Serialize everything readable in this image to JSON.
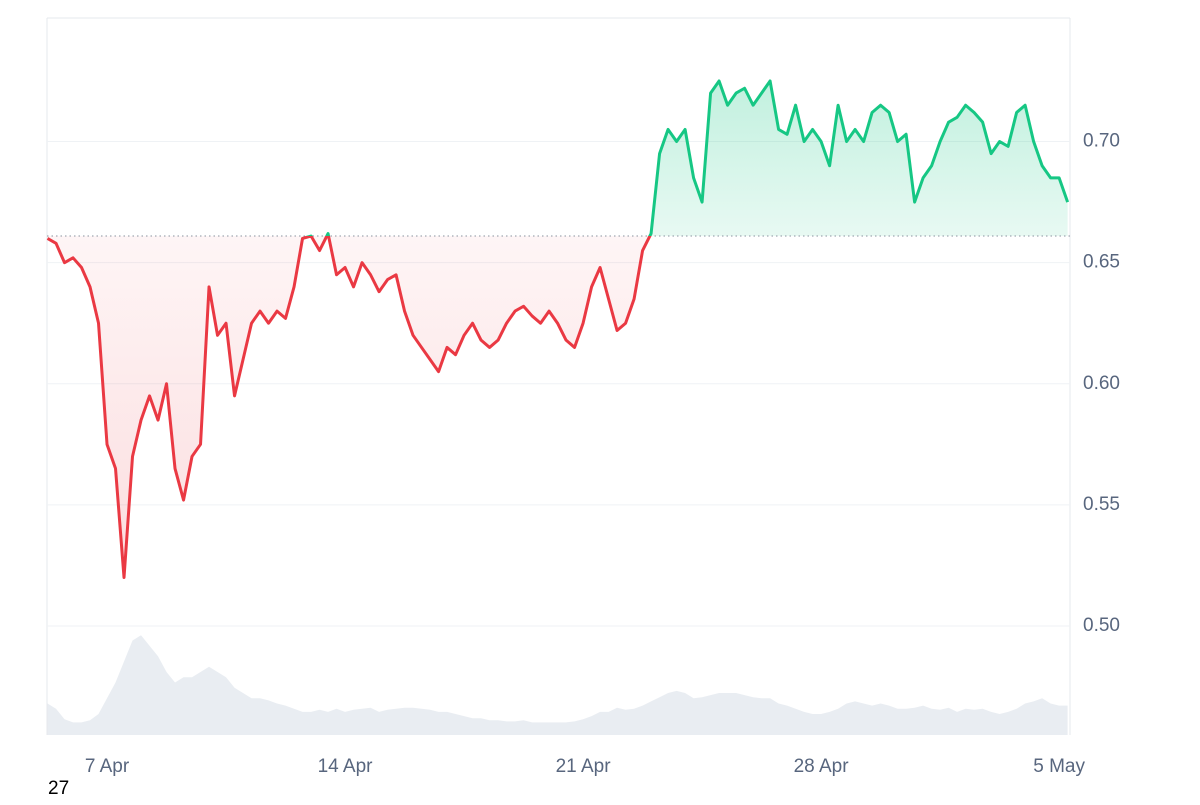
{
  "chart_data": {
    "type": "line",
    "x": [
      5.25,
      5.5,
      5.75,
      6,
      6.25,
      6.5,
      6.75,
      7,
      7.25,
      7.5,
      7.75,
      8,
      8.25,
      8.5,
      8.75,
      9,
      9.25,
      9.5,
      9.75,
      10,
      10.25,
      10.5,
      10.75,
      11,
      11.25,
      11.5,
      11.75,
      12,
      12.25,
      12.5,
      12.75,
      13,
      13.25,
      13.5,
      13.75,
      14,
      14.25,
      14.5,
      14.75,
      15,
      15.25,
      15.5,
      15.75,
      16,
      16.25,
      16.5,
      16.75,
      17,
      17.25,
      17.5,
      17.75,
      18,
      18.25,
      18.5,
      18.75,
      19,
      19.25,
      19.5,
      19.75,
      20,
      20.25,
      20.5,
      20.75,
      21,
      21.25,
      21.5,
      21.75,
      22,
      22.25,
      22.5,
      22.75,
      23,
      23.25,
      23.5,
      23.75,
      24,
      24.25,
      24.5,
      24.75,
      25,
      25.25,
      25.5,
      25.75,
      26,
      26.25,
      26.5,
      26.75,
      27,
      27.25,
      27.5,
      27.75,
      28,
      28.25,
      28.5,
      28.75,
      29,
      29.25,
      29.5,
      29.75,
      30,
      30.25,
      30.5,
      30.75,
      31,
      31.25,
      31.5,
      31.75,
      32,
      32.25,
      32.5,
      32.75,
      33,
      33.25,
      33.5,
      33.75,
      34,
      34.25,
      34.5,
      34.75,
      35,
      35.25
    ],
    "series": [
      {
        "name": "price",
        "values": [
          0.66,
          0.658,
          0.65,
          0.652,
          0.648,
          0.64,
          0.625,
          0.575,
          0.565,
          0.52,
          0.57,
          0.585,
          0.595,
          0.585,
          0.6,
          0.565,
          0.552,
          0.57,
          0.575,
          0.64,
          0.62,
          0.625,
          0.595,
          0.61,
          0.625,
          0.63,
          0.625,
          0.63,
          0.627,
          0.64,
          0.66,
          0.661,
          0.655,
          0.662,
          0.645,
          0.648,
          0.64,
          0.65,
          0.645,
          0.638,
          0.643,
          0.645,
          0.63,
          0.62,
          0.615,
          0.61,
          0.605,
          0.615,
          0.612,
          0.62,
          0.625,
          0.618,
          0.615,
          0.618,
          0.625,
          0.63,
          0.632,
          0.628,
          0.625,
          0.63,
          0.625,
          0.618,
          0.615,
          0.625,
          0.64,
          0.648,
          0.635,
          0.622,
          0.625,
          0.635,
          0.655,
          0.662,
          0.695,
          0.705,
          0.7,
          0.705,
          0.685,
          0.675,
          0.72,
          0.725,
          0.715,
          0.72,
          0.722,
          0.715,
          0.72,
          0.725,
          0.705,
          0.703,
          0.715,
          0.7,
          0.705,
          0.7,
          0.69,
          0.715,
          0.7,
          0.705,
          0.7,
          0.712,
          0.715,
          0.712,
          0.7,
          0.703,
          0.675,
          0.685,
          0.69,
          0.7,
          0.708,
          0.71,
          0.715,
          0.712,
          0.708,
          0.695,
          0.7,
          0.698,
          0.712,
          0.715,
          0.7,
          0.69,
          0.685,
          0.685,
          0.675
        ]
      },
      {
        "name": "volume",
        "values": [
          30,
          25,
          15,
          12,
          12,
          14,
          20,
          35,
          50,
          70,
          90,
          95,
          85,
          75,
          60,
          50,
          55,
          55,
          60,
          65,
          60,
          55,
          45,
          40,
          35,
          35,
          33,
          30,
          28,
          25,
          22,
          22,
          24,
          22,
          25,
          22,
          24,
          25,
          26,
          22,
          24,
          25,
          26,
          26,
          25,
          24,
          22,
          22,
          20,
          18,
          16,
          16,
          14,
          14,
          13,
          13,
          14,
          12,
          12,
          12,
          12,
          12,
          13,
          15,
          18,
          22,
          22,
          26,
          24,
          25,
          28,
          32,
          36,
          40,
          42,
          40,
          35,
          36,
          38,
          40,
          40,
          40,
          38,
          36,
          35,
          35,
          30,
          28,
          25,
          22,
          20,
          20,
          22,
          25,
          30,
          32,
          30,
          28,
          30,
          28,
          25,
          25,
          26,
          28,
          25,
          24,
          26,
          22,
          25,
          24,
          25,
          22,
          20,
          22,
          25,
          30,
          32,
          35,
          30,
          28,
          28
        ]
      }
    ],
    "baseline": 0.661,
    "up_color": "#16c784",
    "down_color": "#ea3943",
    "volume_color": "#e9edf2",
    "xlim": [
      5.235,
      35.32
    ],
    "xticks": [
      {
        "value": 7,
        "label": "7 Apr"
      },
      {
        "value": 14,
        "label": "14 Apr"
      },
      {
        "value": 21,
        "label": "21 Apr"
      },
      {
        "value": 28,
        "label": "28 Apr"
      },
      {
        "value": 35,
        "label": "5 May"
      }
    ],
    "ylim": [
      0.455,
      0.751
    ],
    "yticks": [
      {
        "value": 0.5,
        "label": "0.50"
      },
      {
        "value": 0.55,
        "label": "0.55"
      },
      {
        "value": 0.6,
        "label": "0.60"
      },
      {
        "value": 0.65,
        "label": "0.65"
      },
      {
        "value": 0.7,
        "label": "0.70"
      }
    ],
    "volume_lim": [
      0,
      100
    ],
    "grid": true,
    "footer": "27"
  }
}
